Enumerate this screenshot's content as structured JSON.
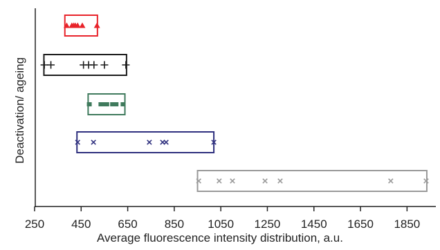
{
  "chart_data": {
    "type": "box",
    "title": "",
    "xlabel": "Average fluorescence intensity distribution, a.u.",
    "ylabel": "Deactivation/ ageing",
    "xlim": [
      250,
      1950
    ],
    "xticks": [
      250,
      450,
      650,
      850,
      1050,
      1250,
      1450,
      1650,
      1850
    ],
    "grid": false,
    "legend": "none",
    "series": [
      {
        "color": "#e8232a",
        "marker": "triangle",
        "box": [
          380,
          520
        ],
        "points": [
          388,
          410,
          418,
          425,
          435,
          455,
          518
        ]
      },
      {
        "color": "#1a1a1a",
        "marker": "plus",
        "box": [
          290,
          645
        ],
        "points": [
          292,
          320,
          460,
          482,
          505,
          550,
          642
        ]
      },
      {
        "color": "#3f7a5c",
        "marker": "square",
        "box": [
          480,
          638
        ],
        "points": [
          485,
          535,
          548,
          560,
          585,
          600,
          630
        ]
      },
      {
        "color": "#2e2f7e",
        "marker": "x",
        "box": [
          432,
          1020
        ],
        "points": [
          435,
          503,
          743,
          800,
          815,
          1020
        ]
      },
      {
        "color": "#999999",
        "marker": "x",
        "box": [
          950,
          1935
        ],
        "points": [
          955,
          1043,
          1100,
          1240,
          1305,
          1780,
          1932
        ]
      }
    ]
  }
}
